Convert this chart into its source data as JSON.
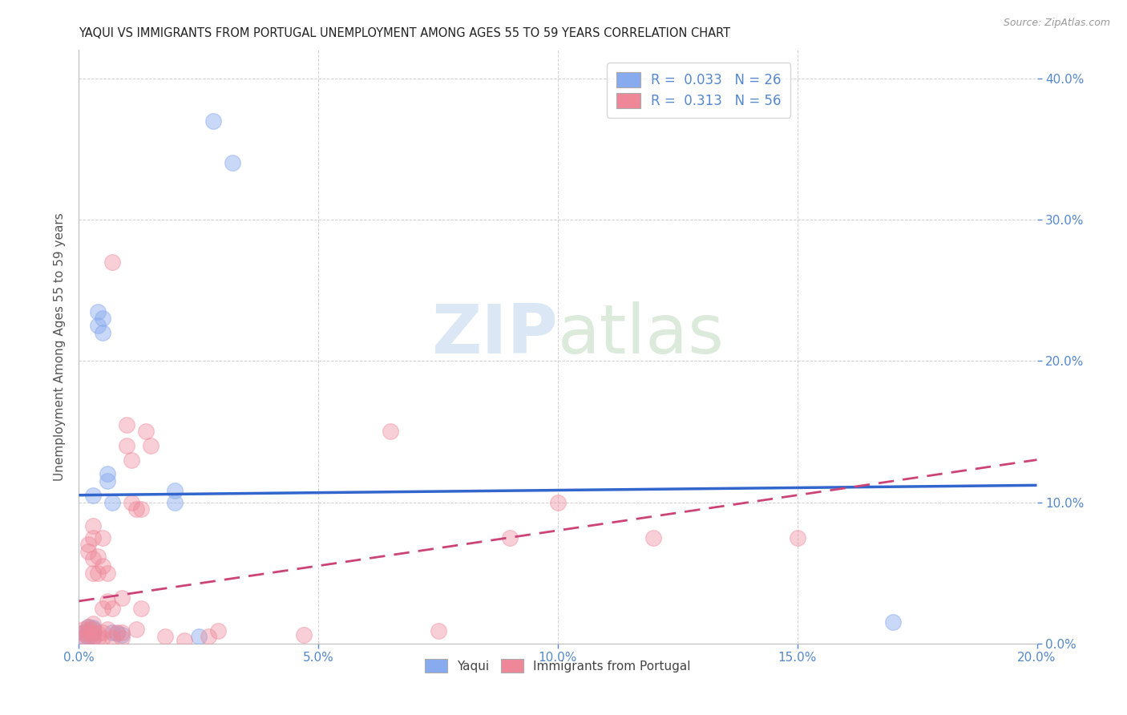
{
  "title": "YAQUI VS IMMIGRANTS FROM PORTUGAL UNEMPLOYMENT AMONG AGES 55 TO 59 YEARS CORRELATION CHART",
  "source": "Source: ZipAtlas.com",
  "ylabel": "Unemployment Among Ages 55 to 59 years",
  "xlim": [
    0.0,
    0.2
  ],
  "ylim": [
    0.0,
    0.42
  ],
  "yticks": [
    0.0,
    0.1,
    0.2,
    0.3,
    0.4
  ],
  "xticks": [
    0.0,
    0.05,
    0.1,
    0.15,
    0.2
  ],
  "title_color": "#222222",
  "blue_color": "#88aaee",
  "pink_color": "#ee8899",
  "trend_blue_color": "#3366cc",
  "trend_pink_color": "#cc4477",
  "tick_color": "#5588cc",
  "legend_text_color": "#5588cc",
  "yaqui_trend": [
    0.0,
    0.105,
    0.2,
    0.112
  ],
  "portugal_trend": [
    0.0,
    0.03,
    0.2,
    0.13
  ],
  "yaqui_points": [
    [
      0.001,
      0.004
    ],
    [
      0.001,
      0.008
    ],
    [
      0.002,
      0.005
    ],
    [
      0.002,
      0.009
    ],
    [
      0.002,
      0.012
    ],
    [
      0.003,
      0.004
    ],
    [
      0.003,
      0.007
    ],
    [
      0.003,
      0.01
    ],
    [
      0.003,
      0.011
    ],
    [
      0.003,
      0.105
    ],
    [
      0.004,
      0.235
    ],
    [
      0.004,
      0.225
    ],
    [
      0.005,
      0.23
    ],
    [
      0.005,
      0.22
    ],
    [
      0.006,
      0.115
    ],
    [
      0.006,
      0.12
    ],
    [
      0.007,
      0.1
    ],
    [
      0.007,
      0.008
    ],
    [
      0.008,
      0.007
    ],
    [
      0.009,
      0.006
    ],
    [
      0.02,
      0.1
    ],
    [
      0.025,
      0.005
    ],
    [
      0.028,
      0.37
    ],
    [
      0.032,
      0.34
    ],
    [
      0.17,
      0.015
    ],
    [
      0.02,
      0.108
    ]
  ],
  "portugal_points": [
    [
      0.001,
      0.004
    ],
    [
      0.001,
      0.007
    ],
    [
      0.001,
      0.01
    ],
    [
      0.002,
      0.004
    ],
    [
      0.002,
      0.007
    ],
    [
      0.002,
      0.01
    ],
    [
      0.002,
      0.012
    ],
    [
      0.002,
      0.065
    ],
    [
      0.002,
      0.07
    ],
    [
      0.003,
      0.004
    ],
    [
      0.003,
      0.007
    ],
    [
      0.003,
      0.01
    ],
    [
      0.003,
      0.014
    ],
    [
      0.003,
      0.05
    ],
    [
      0.003,
      0.06
    ],
    [
      0.003,
      0.075
    ],
    [
      0.003,
      0.083
    ],
    [
      0.004,
      0.004
    ],
    [
      0.004,
      0.007
    ],
    [
      0.004,
      0.05
    ],
    [
      0.004,
      0.062
    ],
    [
      0.005,
      0.004
    ],
    [
      0.005,
      0.008
    ],
    [
      0.005,
      0.025
    ],
    [
      0.005,
      0.055
    ],
    [
      0.005,
      0.075
    ],
    [
      0.006,
      0.01
    ],
    [
      0.006,
      0.03
    ],
    [
      0.006,
      0.05
    ],
    [
      0.007,
      0.004
    ],
    [
      0.007,
      0.025
    ],
    [
      0.007,
      0.27
    ],
    [
      0.008,
      0.008
    ],
    [
      0.009,
      0.004
    ],
    [
      0.009,
      0.008
    ],
    [
      0.009,
      0.032
    ],
    [
      0.01,
      0.14
    ],
    [
      0.01,
      0.155
    ],
    [
      0.011,
      0.1
    ],
    [
      0.011,
      0.13
    ],
    [
      0.012,
      0.01
    ],
    [
      0.012,
      0.095
    ],
    [
      0.013,
      0.025
    ],
    [
      0.013,
      0.095
    ],
    [
      0.014,
      0.15
    ],
    [
      0.015,
      0.14
    ],
    [
      0.018,
      0.005
    ],
    [
      0.022,
      0.002
    ],
    [
      0.027,
      0.005
    ],
    [
      0.029,
      0.009
    ],
    [
      0.047,
      0.006
    ],
    [
      0.065,
      0.15
    ],
    [
      0.075,
      0.009
    ],
    [
      0.09,
      0.075
    ],
    [
      0.1,
      0.1
    ],
    [
      0.12,
      0.075
    ],
    [
      0.15,
      0.075
    ]
  ]
}
